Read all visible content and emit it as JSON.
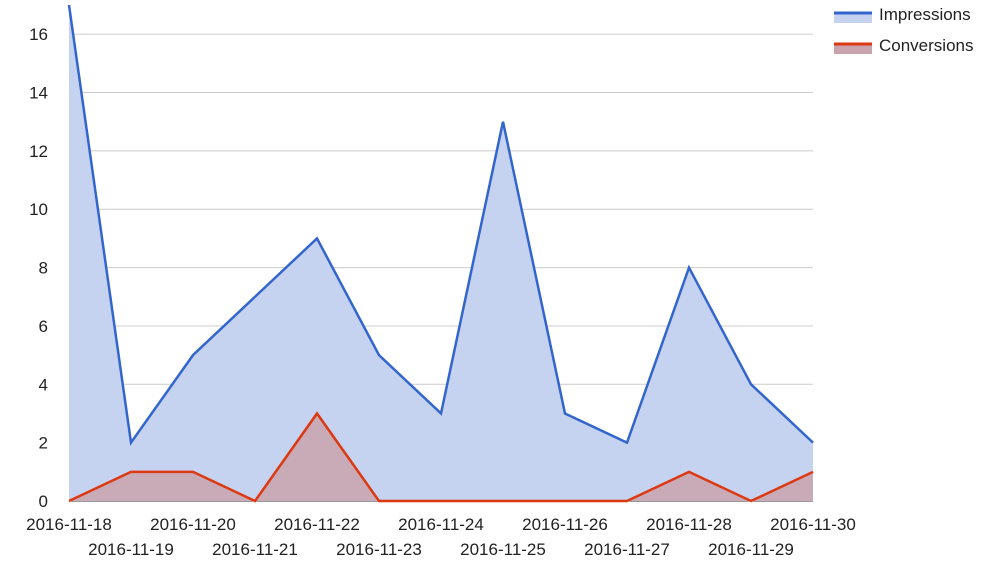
{
  "chart_data": {
    "type": "area",
    "title": "",
    "xlabel": "",
    "ylabel": "",
    "x": [
      "2016-11-18",
      "2016-11-19",
      "2016-11-20",
      "2016-11-21",
      "2016-11-22",
      "2016-11-23",
      "2016-11-24",
      "2016-11-25",
      "2016-11-26",
      "2016-11-27",
      "2016-11-28",
      "2016-11-29",
      "2016-11-30"
    ],
    "ylim": [
      0,
      17
    ],
    "yticks": [
      0,
      2,
      4,
      6,
      8,
      10,
      12,
      14,
      16
    ],
    "grid": true,
    "legend": "top-right",
    "series": [
      {
        "name": "Impressions",
        "color": "#3366cc",
        "fill": "#c5d3f0",
        "values": [
          17,
          2,
          5,
          7,
          9,
          5,
          3,
          13,
          3,
          2,
          8,
          4,
          2
        ]
      },
      {
        "name": "Conversions",
        "color": "#dc3912",
        "fill": "#c9a3ad",
        "values": [
          0,
          1,
          1,
          0,
          3,
          0,
          0,
          0,
          0,
          0,
          1,
          0,
          1
        ]
      }
    ]
  }
}
